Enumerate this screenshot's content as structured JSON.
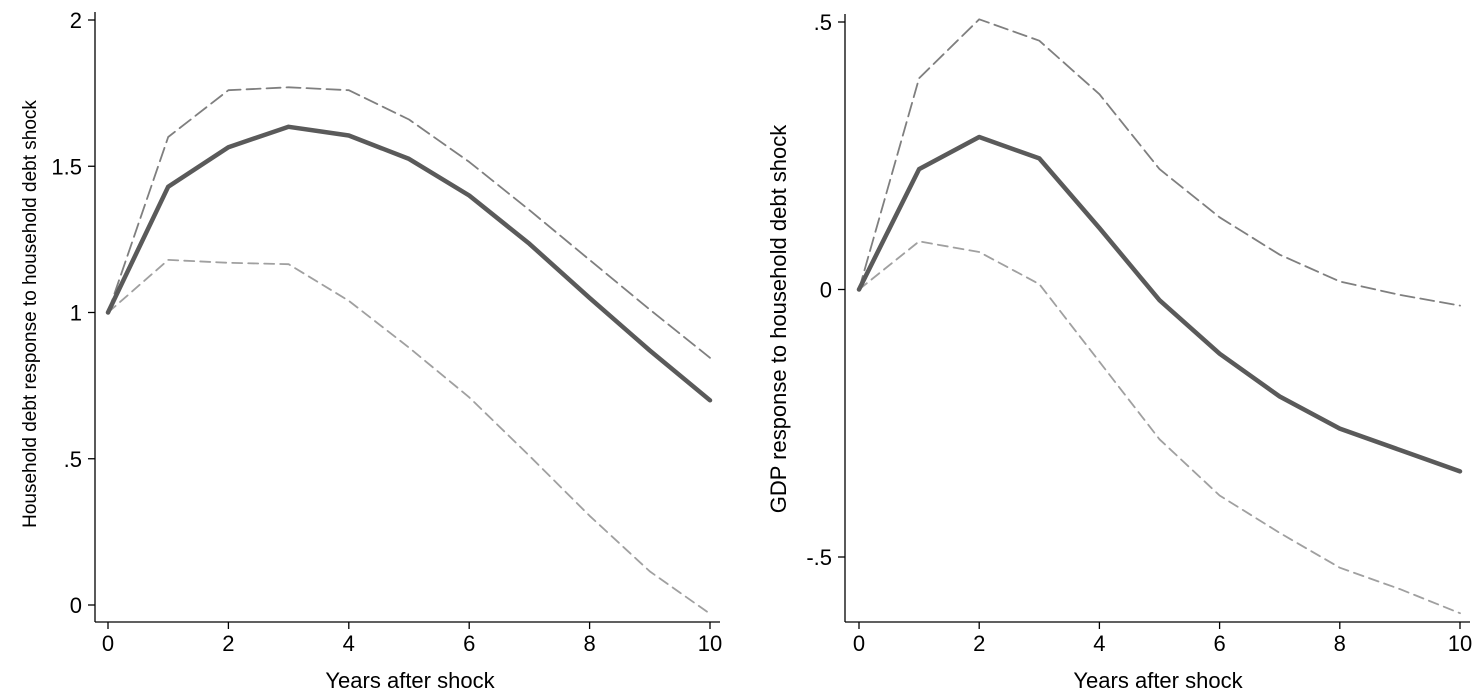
{
  "chart_data": [
    {
      "type": "line",
      "title": "",
      "xlabel": "Years after shock",
      "ylabel": "Household debt response to household debt shock",
      "xlim": [
        0,
        10
      ],
      "ylim": [
        0,
        2
      ],
      "xticks": [
        0,
        2,
        4,
        6,
        8,
        10
      ],
      "xtick_labels": [
        "0",
        "2",
        "4",
        "6",
        "8",
        "10"
      ],
      "yticks": [
        0,
        0.5,
        1,
        1.5,
        2
      ],
      "ytick_labels": [
        "0",
        ".5",
        "1",
        "1.5",
        "2"
      ],
      "grid": false,
      "legend": "none",
      "x": [
        0,
        1,
        2,
        3,
        4,
        5,
        6,
        7,
        8,
        9,
        10
      ],
      "series": [
        {
          "style": "solid",
          "color": "#5a5a5a",
          "values": [
            1.0,
            1.43,
            1.565,
            1.635,
            1.605,
            1.525,
            1.4,
            1.235,
            1.05,
            0.87,
            0.7
          ]
        },
        {
          "style": "dashed",
          "color": "#7f7f7f",
          "values": [
            1.0,
            1.6,
            1.76,
            1.77,
            1.76,
            1.66,
            1.515,
            1.35,
            1.18,
            1.01,
            0.845
          ]
        },
        {
          "style": "dashed",
          "color": "#a0a0a0",
          "values": [
            1.0,
            1.18,
            1.17,
            1.165,
            1.04,
            0.88,
            0.71,
            0.51,
            0.305,
            0.115,
            -0.03
          ]
        }
      ]
    },
    {
      "type": "line",
      "title": "",
      "xlabel": "Years after shock",
      "ylabel": "GDP response to household debt shock",
      "xlim": [
        0,
        10
      ],
      "ylim": [
        -0.6,
        0.5
      ],
      "xticks": [
        0,
        2,
        4,
        6,
        8,
        10
      ],
      "xtick_labels": [
        "0",
        "2",
        "4",
        "6",
        "8",
        "10"
      ],
      "yticks": [
        -0.5,
        0,
        0.5
      ],
      "ytick_labels": [
        "-.5",
        "0",
        ".5"
      ],
      "grid": false,
      "legend": "none",
      "x": [
        0,
        1,
        2,
        3,
        4,
        5,
        6,
        7,
        8,
        9,
        10
      ],
      "series": [
        {
          "style": "solid",
          "color": "#5a5a5a",
          "values": [
            0.0,
            0.225,
            0.285,
            0.245,
            0.115,
            -0.02,
            -0.12,
            -0.2,
            -0.26,
            -0.3,
            -0.34
          ]
        },
        {
          "style": "dashed",
          "color": "#7f7f7f",
          "values": [
            0.0,
            0.395,
            0.505,
            0.465,
            0.365,
            0.225,
            0.135,
            0.065,
            0.015,
            -0.01,
            -0.03
          ]
        },
        {
          "style": "dashed",
          "color": "#a0a0a0",
          "values": [
            0.0,
            0.09,
            0.07,
            0.01,
            -0.135,
            -0.28,
            -0.385,
            -0.455,
            -0.52,
            -0.56,
            -0.605
          ]
        }
      ]
    }
  ]
}
